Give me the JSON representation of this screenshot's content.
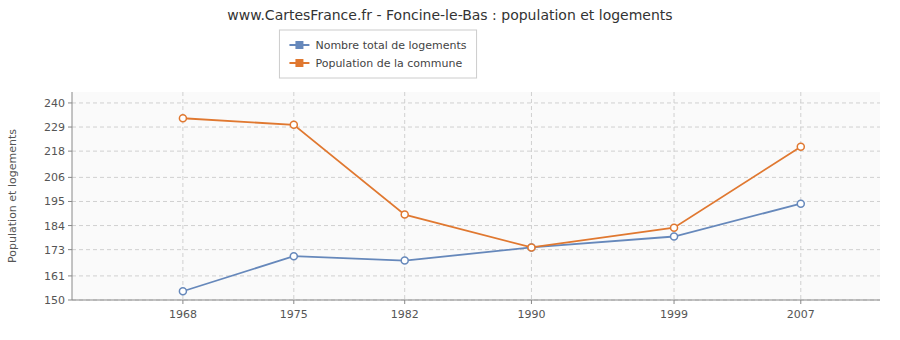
{
  "chart_data": {
    "type": "line",
    "title": "www.CartesFrance.fr - Foncine-le-Bas : population et logements",
    "y_label": "Population et logements",
    "x": [
      1968,
      1975,
      1982,
      1990,
      1999,
      2007
    ],
    "series": [
      {
        "name": "Nombre total de logements",
        "color": "#6688bb",
        "values": [
          154,
          170,
          168,
          174,
          179,
          194
        ]
      },
      {
        "name": "Population de la commune",
        "color": "#e07830",
        "values": [
          233,
          230,
          189,
          174,
          183,
          220
        ]
      }
    ],
    "xlim": [
      1961,
      2012
    ],
    "xticks": [
      1968,
      1975,
      1982,
      1990,
      1999,
      2007
    ],
    "ylim": [
      150,
      245
    ],
    "yticks": [
      150,
      161,
      173,
      184,
      195,
      206,
      218,
      229,
      240
    ],
    "grid": true,
    "legend": "top",
    "marker": "circle"
  }
}
